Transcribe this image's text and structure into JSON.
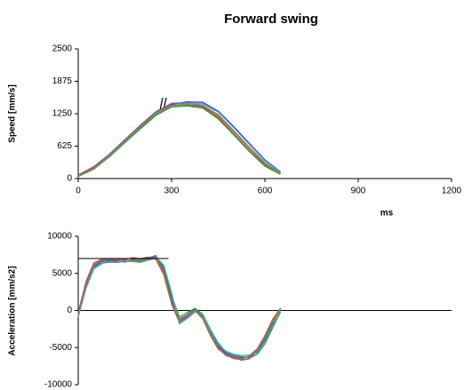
{
  "title": "Forward swing",
  "chart_data": [
    {
      "type": "line",
      "ylabel": "Speed [mm/s]",
      "xlabel": "ms",
      "xlim": [
        0,
        1200
      ],
      "xticks": [
        0,
        300,
        600,
        900,
        1200
      ],
      "ylim": [
        0,
        2500
      ],
      "yticks": [
        0,
        625,
        1250,
        1875,
        2500
      ],
      "x": [
        0,
        50,
        100,
        150,
        200,
        250,
        300,
        350,
        400,
        450,
        500,
        550,
        600,
        650
      ],
      "series": [
        {
          "color": "#3a3ad0",
          "values": [
            60,
            200,
            430,
            700,
            980,
            1250,
            1430,
            1480,
            1470,
            1300,
            1000,
            680,
            360,
            130
          ]
        },
        {
          "color": "#d03a3a",
          "values": [
            50,
            210,
            460,
            740,
            1020,
            1280,
            1420,
            1420,
            1380,
            1180,
            860,
            540,
            260,
            90
          ]
        },
        {
          "color": "#2e9a3a",
          "values": [
            40,
            180,
            420,
            690,
            960,
            1220,
            1380,
            1400,
            1360,
            1150,
            840,
            520,
            240,
            80
          ]
        },
        {
          "color": "#9a4ab0",
          "values": [
            70,
            230,
            470,
            750,
            1030,
            1290,
            1450,
            1460,
            1410,
            1230,
            920,
            600,
            300,
            100
          ]
        },
        {
          "color": "#3aaac0",
          "values": [
            55,
            190,
            440,
            710,
            990,
            1260,
            1410,
            1450,
            1440,
            1280,
            980,
            660,
            340,
            120
          ]
        },
        {
          "color": "#8a8a30",
          "values": [
            45,
            195,
            450,
            720,
            1000,
            1240,
            1400,
            1430,
            1400,
            1210,
            900,
            580,
            280,
            95
          ]
        }
      ]
    },
    {
      "type": "line",
      "ylabel": "Acceleration [mm/s2]",
      "xlim": [
        0,
        1200
      ],
      "ylim": [
        -10000,
        10000
      ],
      "yticks": [
        -10000,
        -5000,
        0,
        5000,
        10000
      ],
      "reference_line": {
        "x": [
          0,
          290
        ],
        "y": [
          7000,
          7000
        ]
      },
      "x": [
        0,
        25,
        50,
        75,
        100,
        125,
        150,
        175,
        200,
        225,
        250,
        275,
        300,
        325,
        350,
        375,
        400,
        425,
        450,
        475,
        500,
        525,
        550,
        575,
        600,
        625,
        650
      ],
      "series": [
        {
          "color": "#3a3ad0",
          "values": [
            -500,
            3500,
            6000,
            6600,
            6700,
            6600,
            6700,
            6800,
            6700,
            7000,
            7300,
            5500,
            1500,
            -1200,
            -600,
            200,
            -800,
            -3000,
            -4800,
            -5800,
            -6200,
            -6400,
            -6300,
            -5600,
            -4000,
            -1800,
            200
          ]
        },
        {
          "color": "#d03a3a",
          "values": [
            -300,
            3900,
            6400,
            6900,
            7000,
            6800,
            6900,
            7100,
            7000,
            7200,
            6900,
            4800,
            900,
            -1600,
            -900,
            0,
            -1100,
            -3400,
            -5200,
            -6000,
            -6500,
            -6600,
            -6100,
            -5200,
            -3400,
            -1200,
            300
          ]
        },
        {
          "color": "#2e9a3a",
          "values": [
            -700,
            3200,
            5800,
            6400,
            6500,
            6500,
            6600,
            6600,
            6500,
            6800,
            7100,
            5900,
            2000,
            -900,
            -300,
            300,
            -500,
            -2600,
            -4400,
            -5600,
            -6000,
            -6200,
            -6400,
            -5900,
            -4500,
            -2300,
            -200
          ]
        },
        {
          "color": "#9a4ab0",
          "values": [
            -400,
            3700,
            6200,
            6700,
            6800,
            6700,
            6500,
            6900,
            6800,
            7100,
            7400,
            5200,
            1200,
            -1400,
            -800,
            100,
            -900,
            -3200,
            -5000,
            -5900,
            -6300,
            -6700,
            -6500,
            -5400,
            -3700,
            -1500,
            100
          ]
        },
        {
          "color": "#3aaac0",
          "values": [
            -900,
            3000,
            5600,
            6300,
            6600,
            6500,
            6600,
            6700,
            6600,
            6900,
            7200,
            6100,
            2400,
            -1800,
            -1100,
            -200,
            -600,
            -2800,
            -4600,
            -5500,
            -5900,
            -6100,
            -6000,
            -5700,
            -4200,
            -2000,
            400
          ]
        },
        {
          "color": "#8a8a30",
          "values": [
            -600,
            3400,
            6100,
            6800,
            6900,
            7000,
            6800,
            6700,
            6900,
            7000,
            7100,
            5000,
            1100,
            -1300,
            -700,
            100,
            -1000,
            -3300,
            -5100,
            -6100,
            -6400,
            -6500,
            -6200,
            -5300,
            -3600,
            -1400,
            0
          ]
        }
      ]
    }
  ]
}
